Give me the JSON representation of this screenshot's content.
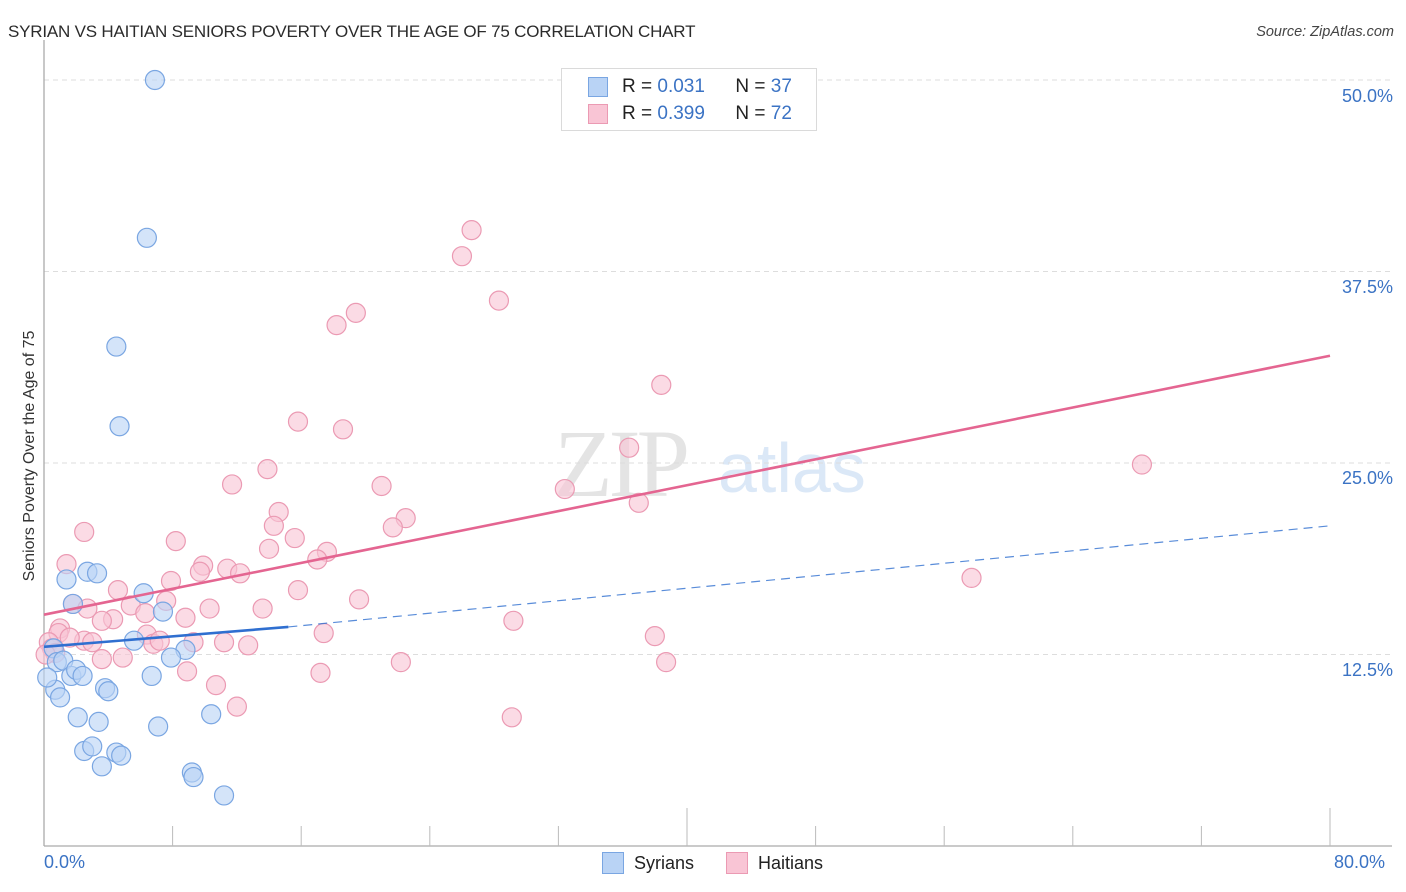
{
  "header": {
    "title": "SYRIAN VS HAITIAN SENIORS POVERTY OVER THE AGE OF 75 CORRELATION CHART",
    "source": "Source: ZipAtlas.com"
  },
  "watermark": {
    "zip": "ZIP",
    "atlas": "atlas"
  },
  "legend_top": {
    "rows": [
      {
        "r_label": "R =",
        "r_value": "0.031",
        "n_label": "N =",
        "n_value": "37"
      },
      {
        "r_label": "R =",
        "r_value": "0.399",
        "n_label": "N =",
        "n_value": "72"
      }
    ]
  },
  "legend_bottom": {
    "items": [
      "Syrians",
      "Haitians"
    ]
  },
  "axes": {
    "ylabel": "Seniors Poverty Over the Age of 75",
    "yticks": [
      "50.0%",
      "37.5%",
      "25.0%",
      "12.5%"
    ],
    "xticks": [
      "0.0%",
      "80.0%"
    ]
  },
  "colors": {
    "syrians_fill": "#b9d3f5",
    "syrians_stroke": "#7aa6e2",
    "syrians_line": "#2f6fd0",
    "haitians_fill": "#f9c5d5",
    "haitians_stroke": "#eb9ab3",
    "haitians_line": "#e46591",
    "tick_text": "#3b73c4"
  },
  "chart_data": {
    "type": "scatter",
    "title": "SYRIAN VS HAITIAN SENIORS POVERTY OVER THE AGE OF 75 CORRELATION CHART",
    "xlabel": "",
    "ylabel": "Seniors Poverty Over the Age of 75",
    "xlim": [
      0,
      80
    ],
    "ylim": [
      0,
      50
    ],
    "x_tick_labels": [
      "0.0%",
      "80.0%"
    ],
    "y_tick_labels": [
      "12.5%",
      "25.0%",
      "37.5%",
      "50.0%"
    ],
    "y_ticks": [
      12.5,
      25.0,
      37.5,
      50.0
    ],
    "grid": "horizontal dashed",
    "legend_position": "top-center and bottom-center",
    "series": [
      {
        "name": "Syrians",
        "R": 0.031,
        "N": 37,
        "trend": {
          "x0": 0,
          "y0": 13.0,
          "x1": 15.2,
          "y1": 14.3,
          "solid_until_x": 15.2,
          "dashed_to": {
            "x": 80,
            "y": 20.9
          }
        },
        "points": [
          [
            6.9,
            50.0
          ],
          [
            6.4,
            39.7
          ],
          [
            4.5,
            32.6
          ],
          [
            4.7,
            27.4
          ],
          [
            1.4,
            17.4
          ],
          [
            2.7,
            17.9
          ],
          [
            3.3,
            17.8
          ],
          [
            1.8,
            15.8
          ],
          [
            6.2,
            16.5
          ],
          [
            7.4,
            15.3
          ],
          [
            5.6,
            13.4
          ],
          [
            8.8,
            12.8
          ],
          [
            7.9,
            12.3
          ],
          [
            0.6,
            12.9
          ],
          [
            0.8,
            12.0
          ],
          [
            1.2,
            12.1
          ],
          [
            1.7,
            11.1
          ],
          [
            2.0,
            11.5
          ],
          [
            2.4,
            11.1
          ],
          [
            6.7,
            11.1
          ],
          [
            0.7,
            10.2
          ],
          [
            1.0,
            9.7
          ],
          [
            3.8,
            10.3
          ],
          [
            4.0,
            10.1
          ],
          [
            2.1,
            8.4
          ],
          [
            3.4,
            8.1
          ],
          [
            7.1,
            7.8
          ],
          [
            10.4,
            8.6
          ],
          [
            2.5,
            6.2
          ],
          [
            3.0,
            6.5
          ],
          [
            3.6,
            5.2
          ],
          [
            4.5,
            6.1
          ],
          [
            4.8,
            5.9
          ],
          [
            9.2,
            4.8
          ],
          [
            9.3,
            4.5
          ],
          [
            11.2,
            3.3
          ],
          [
            0.2,
            11.0
          ]
        ]
      },
      {
        "name": "Haitians",
        "R": 0.399,
        "N": 72,
        "trend": {
          "x0": 0,
          "y0": 15.1,
          "x1": 80,
          "y1": 32.0
        },
        "points": [
          [
            26.6,
            40.2
          ],
          [
            26.0,
            38.5
          ],
          [
            28.3,
            35.6
          ],
          [
            19.4,
            34.8
          ],
          [
            18.2,
            34.0
          ],
          [
            38.4,
            30.1
          ],
          [
            15.8,
            27.7
          ],
          [
            18.6,
            27.2
          ],
          [
            36.4,
            26.0
          ],
          [
            13.9,
            24.6
          ],
          [
            68.3,
            24.9
          ],
          [
            11.7,
            23.6
          ],
          [
            21.0,
            23.5
          ],
          [
            32.4,
            23.3
          ],
          [
            37.0,
            22.4
          ],
          [
            14.6,
            21.8
          ],
          [
            22.5,
            21.4
          ],
          [
            21.7,
            20.8
          ],
          [
            14.3,
            20.9
          ],
          [
            2.5,
            20.5
          ],
          [
            15.6,
            20.1
          ],
          [
            8.2,
            19.9
          ],
          [
            14.0,
            19.4
          ],
          [
            17.6,
            19.2
          ],
          [
            1.4,
            18.4
          ],
          [
            17.0,
            18.7
          ],
          [
            57.7,
            17.5
          ],
          [
            9.9,
            18.3
          ],
          [
            11.4,
            18.1
          ],
          [
            12.2,
            17.8
          ],
          [
            9.7,
            17.9
          ],
          [
            7.9,
            17.3
          ],
          [
            4.6,
            16.7
          ],
          [
            15.8,
            16.7
          ],
          [
            19.6,
            16.1
          ],
          [
            7.6,
            16.0
          ],
          [
            1.8,
            15.8
          ],
          [
            2.7,
            15.5
          ],
          [
            5.4,
            15.7
          ],
          [
            6.3,
            15.2
          ],
          [
            10.3,
            15.5
          ],
          [
            13.6,
            15.5
          ],
          [
            4.3,
            14.8
          ],
          [
            3.6,
            14.7
          ],
          [
            8.8,
            14.9
          ],
          [
            29.2,
            14.7
          ],
          [
            1.0,
            14.2
          ],
          [
            17.4,
            13.9
          ],
          [
            0.9,
            13.9
          ],
          [
            6.4,
            13.8
          ],
          [
            38.0,
            13.7
          ],
          [
            2.5,
            13.4
          ],
          [
            3.0,
            13.3
          ],
          [
            6.8,
            13.2
          ],
          [
            7.2,
            13.4
          ],
          [
            9.3,
            13.3
          ],
          [
            11.2,
            13.3
          ],
          [
            12.7,
            13.1
          ],
          [
            0.3,
            13.3
          ],
          [
            0.5,
            12.9
          ],
          [
            0.7,
            12.6
          ],
          [
            4.9,
            12.3
          ],
          [
            3.6,
            12.2
          ],
          [
            22.2,
            12.0
          ],
          [
            38.7,
            12.0
          ],
          [
            17.2,
            11.3
          ],
          [
            8.9,
            11.4
          ],
          [
            10.7,
            10.5
          ],
          [
            12.0,
            9.1
          ],
          [
            29.1,
            8.4
          ],
          [
            0.1,
            12.5
          ],
          [
            1.6,
            13.6
          ]
        ]
      }
    ]
  }
}
